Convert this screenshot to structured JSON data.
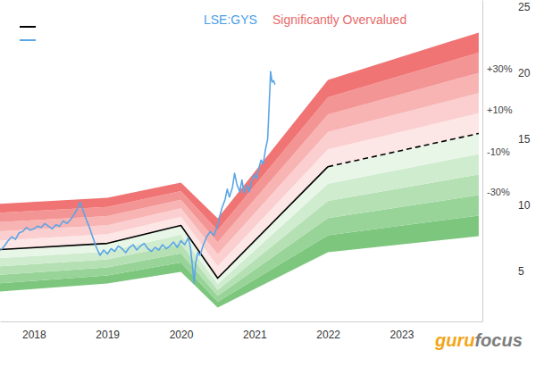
{
  "chart_data": {
    "type": "line",
    "title": "LSE:GYS",
    "subtitle": "Significantly Overvalued",
    "xlim": [
      2017.54,
      2024.1
    ],
    "xticks": [
      2018,
      2019,
      2020,
      2021,
      2022,
      2023
    ],
    "ylim": [
      1.2,
      25.5
    ],
    "yticks": [
      5,
      10,
      15,
      20,
      25
    ],
    "grid": false,
    "series": [
      {
        "color": "#000000",
        "line_style": "solid",
        "x": [
          2017.54,
          2019.0,
          2020.0,
          2020.5,
          2022.0,
          2024.05
        ],
        "values": [
          6.63,
          7.1,
          8.46,
          4.47,
          12.9,
          null
        ]
      },
      {
        "color": "#5aa6e6",
        "line_style": "solid",
        "x": [
          2017.55,
          2017.6,
          2017.65,
          2017.7,
          2017.75,
          2017.8,
          2017.85,
          2017.9,
          2017.95,
          2018.0,
          2018.05,
          2018.1,
          2018.15,
          2018.2,
          2018.25,
          2018.3,
          2018.35,
          2018.4,
          2018.45,
          2018.5,
          2018.55,
          2018.6,
          2018.63,
          2018.67,
          2018.7,
          2018.75,
          2018.8,
          2018.85,
          2018.9,
          2018.95,
          2019.0,
          2019.05,
          2019.1,
          2019.15,
          2019.2,
          2019.25,
          2019.3,
          2019.35,
          2019.4,
          2019.45,
          2019.5,
          2019.55,
          2019.6,
          2019.65,
          2019.7,
          2019.75,
          2019.8,
          2019.85,
          2019.9,
          2019.95,
          2020.0,
          2020.05,
          2020.1,
          2020.13,
          2020.16,
          2020.18,
          2020.2,
          2020.23,
          2020.26,
          2020.3,
          2020.35,
          2020.4,
          2020.45,
          2020.5,
          2020.53,
          2020.56,
          2020.6,
          2020.63,
          2020.66,
          2020.7,
          2020.73,
          2020.76,
          2020.8,
          2020.83,
          2020.86,
          2020.9,
          2020.93,
          2020.96,
          2021.0,
          2021.03,
          2021.06,
          2021.09,
          2021.12,
          2021.15,
          2021.18,
          2021.2,
          2021.22,
          2021.24,
          2021.26,
          2021.28
        ],
        "values": [
          6.6,
          6.9,
          7.3,
          7.6,
          7.4,
          7.9,
          8.0,
          8.3,
          8.1,
          8.2,
          8.4,
          8.3,
          8.6,
          8.4,
          8.2,
          8.5,
          8.4,
          8.8,
          8.6,
          8.9,
          9.3,
          9.8,
          10.2,
          9.6,
          9.1,
          8.4,
          7.6,
          6.8,
          6.2,
          6.6,
          6.3,
          6.7,
          6.5,
          6.9,
          6.7,
          6.4,
          6.8,
          7.0,
          6.6,
          6.9,
          7.1,
          6.7,
          6.5,
          6.8,
          6.6,
          7.0,
          6.7,
          6.9,
          7.2,
          6.8,
          7.3,
          7.0,
          7.5,
          6.8,
          5.2,
          4.1,
          5.6,
          6.4,
          6.2,
          6.9,
          7.6,
          8.0,
          7.7,
          8.5,
          9.2,
          9.8,
          10.4,
          11.2,
          10.6,
          11.3,
          12.4,
          11.6,
          11.0,
          11.9,
          10.9,
          11.5,
          11.0,
          11.8,
          12.3,
          12.0,
          12.8,
          13.4,
          13.1,
          14.2,
          15.0,
          17.5,
          20.1,
          19.3,
          19.4,
          19.1
        ]
      },
      {
        "color": "#000000",
        "line_style": "dashed",
        "x": [
          2017.54,
          2019.0,
          2020.0,
          2020.5,
          2022.0,
          2024.05
        ],
        "values": [
          null,
          null,
          null,
          null,
          12.9,
          15.41
        ]
      }
    ],
    "bands": {
      "x": [
        2017.54,
        2019.0,
        2020.0,
        2020.5,
        2022.0,
        2024.05
      ],
      "edges": [
        [
          3.46,
          4.07,
          4.95,
          2.25,
          6.43,
          7.65
        ],
        [
          4.09,
          4.68,
          5.65,
          2.69,
          7.72,
          9.2
        ],
        [
          4.73,
          5.28,
          6.35,
          3.14,
          9.02,
          10.75
        ],
        [
          5.36,
          5.89,
          7.06,
          3.58,
          10.31,
          12.31
        ],
        [
          6.0,
          6.49,
          7.76,
          4.03,
          11.61,
          13.86
        ],
        [
          6.63,
          7.1,
          8.46,
          4.47,
          12.9,
          15.41
        ],
        [
          7.32,
          7.79,
          9.11,
          5.38,
          14.21,
          16.94
        ],
        [
          8.02,
          8.48,
          9.76,
          6.28,
          15.52,
          18.46
        ],
        [
          8.71,
          9.17,
          10.4,
          7.19,
          16.84,
          19.99
        ],
        [
          9.41,
          9.86,
          11.05,
          8.09,
          18.15,
          21.51
        ],
        [
          10.1,
          10.55,
          11.7,
          9.0,
          19.46,
          23.04
        ]
      ],
      "colors": [
        "#7dc67d",
        "#98d398",
        "#b4e0b4",
        "#cfeccf",
        "#e8f6e8",
        "#fde6e6",
        "#fbcfcf",
        "#f8b3b3",
        "#f49595",
        "#f07474"
      ]
    },
    "annotations": [
      {
        "text": "+30%",
        "y": 20.3
      },
      {
        "text": "+10%",
        "y": 17.2
      },
      {
        "text": "-10%",
        "y": 14.0
      },
      {
        "text": "-30%",
        "y": 11.0
      }
    ],
    "watermark": [
      "guru",
      "focus"
    ]
  }
}
